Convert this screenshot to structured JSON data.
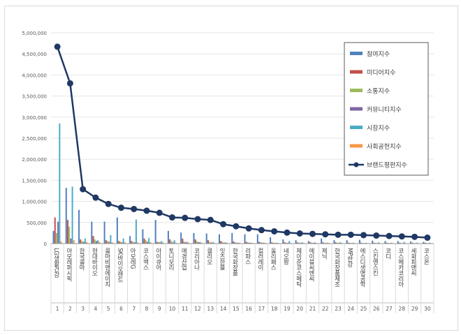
{
  "chart_data": {
    "type": "bar",
    "title": "",
    "xlabel": "",
    "ylabel": "",
    "ylim": [
      0,
      5000000
    ],
    "y_ticks": [
      "0",
      "500,000",
      "1,000,000",
      "1,500,000",
      "2,000,000",
      "2,500,000",
      "3,000,000",
      "3,500,000",
      "4,000,000",
      "4,500,000",
      "5,000,000"
    ],
    "categories": [
      "LG생활건강",
      "아모레퍼시픽",
      "한국콜마",
      "현대바이오",
      "콜마비앤에이치",
      "SK바이오랜드",
      "아모레G",
      "코스맥스",
      "아이큐어",
      "토니모리",
      "애경산업",
      "코리아나",
      "클리오",
      "잇츠한불",
      "한국화장품",
      "리파스",
      "컬러레이",
      "올리패스",
      "네오팜",
      "제이준코스메틱",
      "에이블씨엔씨",
      "제닉",
      "한국화장품제조",
      "MP한강",
      "에스디생명공학",
      "스킨앤스킨",
      "코디",
      "코스메카코리아",
      "세화피앤씨",
      "코스온"
    ],
    "ranks": [
      "1",
      "2",
      "3",
      "4",
      "5",
      "6",
      "7",
      "8",
      "9",
      "10",
      "11",
      "12",
      "13",
      "14",
      "15",
      "16",
      "17",
      "18",
      "19",
      "20",
      "21",
      "22",
      "23",
      "24",
      "25",
      "26",
      "27",
      "28",
      "29",
      "30"
    ],
    "series": [
      {
        "name": "참여지수",
        "color": "#4f81bd",
        "kind": "bar",
        "values": [
          300000,
          1320000,
          800000,
          520000,
          520000,
          620000,
          180000,
          340000,
          560000,
          300000,
          260000,
          250000,
          240000,
          220000,
          250000,
          220000,
          220000,
          150000,
          100000,
          80000,
          60000,
          120000,
          80000,
          80000,
          90000,
          70000,
          60000,
          60000,
          50000,
          40000
        ]
      },
      {
        "name": "미디어지수",
        "color": "#c0504d",
        "kind": "bar",
        "values": [
          620000,
          560000,
          100000,
          180000,
          80000,
          60000,
          60000,
          120000,
          40000,
          100000,
          120000,
          100000,
          80000,
          60000,
          50000,
          40000,
          40000,
          30000,
          30000,
          30000,
          30000,
          30000,
          30000,
          20000,
          20000,
          20000,
          20000,
          20000,
          20000,
          20000
        ]
      },
      {
        "name": "소통지수",
        "color": "#9bbb59",
        "kind": "bar",
        "values": [
          250000,
          400000,
          60000,
          100000,
          60000,
          50000,
          40000,
          80000,
          40000,
          60000,
          50000,
          60000,
          40000,
          40000,
          30000,
          30000,
          30000,
          20000,
          20000,
          20000,
          20000,
          20000,
          20000,
          20000,
          15000,
          15000,
          15000,
          15000,
          15000,
          15000
        ]
      },
      {
        "name": "커뮤니티지수",
        "color": "#8064a2",
        "kind": "bar",
        "values": [
          520000,
          120000,
          40000,
          60000,
          40000,
          30000,
          30000,
          40000,
          30000,
          30000,
          30000,
          30000,
          20000,
          20000,
          20000,
          20000,
          20000,
          15000,
          15000,
          15000,
          15000,
          15000,
          15000,
          10000,
          10000,
          10000,
          10000,
          10000,
          10000,
          10000
        ]
      },
      {
        "name": "시장지수",
        "color": "#4bacc6",
        "kind": "bar",
        "values": [
          2850000,
          1350000,
          120000,
          80000,
          200000,
          120000,
          570000,
          130000,
          60000,
          80000,
          40000,
          40000,
          40000,
          30000,
          20000,
          20000,
          20000,
          20000,
          60000,
          30000,
          30000,
          20000,
          30000,
          20000,
          20000,
          30000,
          20000,
          40000,
          20000,
          20000
        ]
      },
      {
        "name": "사회공헌지수",
        "color": "#f79646",
        "kind": "bar",
        "values": [
          50000,
          80000,
          40000,
          40000,
          30000,
          30000,
          30000,
          30000,
          20000,
          20000,
          20000,
          20000,
          20000,
          20000,
          20000,
          15000,
          15000,
          15000,
          15000,
          15000,
          15000,
          15000,
          15000,
          10000,
          10000,
          10000,
          10000,
          10000,
          10000,
          10000
        ]
      },
      {
        "name": "브랜드평판지수",
        "color": "#1f3864",
        "kind": "line",
        "values": [
          4670000,
          3800000,
          1290000,
          1090000,
          940000,
          850000,
          820000,
          780000,
          730000,
          620000,
          610000,
          580000,
          560000,
          460000,
          410000,
          360000,
          320000,
          290000,
          260000,
          240000,
          230000,
          220000,
          210000,
          210000,
          200000,
          190000,
          180000,
          170000,
          160000,
          140000
        ]
      }
    ]
  }
}
